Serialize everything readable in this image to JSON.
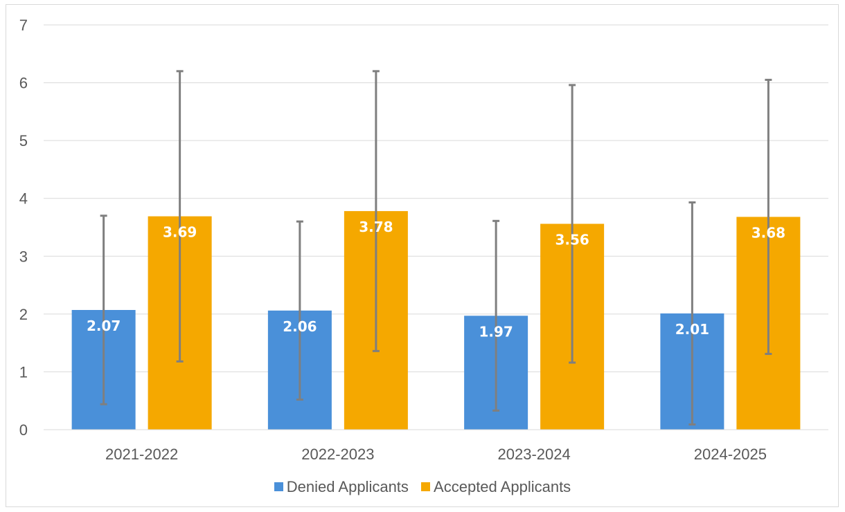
{
  "chart_data": {
    "type": "bar",
    "title": "",
    "xlabel": "",
    "ylabel": "",
    "categories": [
      "2021-2022",
      "2022-2023",
      "2023-2024",
      "2024-2025"
    ],
    "ylim": [
      0,
      7
    ],
    "yticks": [
      0,
      1,
      2,
      3,
      4,
      5,
      6,
      7
    ],
    "grid": true,
    "legend_position": "bottom",
    "series": [
      {
        "name": "Denied Applicants",
        "color": "#4a90d9",
        "values": [
          2.07,
          2.06,
          1.97,
          2.01
        ],
        "error_low": [
          0.44,
          0.52,
          0.33,
          0.09
        ],
        "error_high": [
          3.7,
          3.6,
          3.61,
          3.93
        ]
      },
      {
        "name": "Accepted Applicants",
        "color": "#f5a800",
        "values": [
          3.69,
          3.78,
          3.56,
          3.68
        ],
        "error_low": [
          1.18,
          1.36,
          1.16,
          1.31
        ],
        "error_high": [
          6.2,
          6.2,
          5.96,
          6.05
        ]
      }
    ],
    "data_labels": [
      [
        "2.07",
        "2.06",
        "1.97",
        "2.01"
      ],
      [
        "3.69",
        "3.78",
        "3.56",
        "3.68"
      ]
    ],
    "error_bar_color": "#7f7f7f",
    "grid_color": "#d9d9d9"
  }
}
